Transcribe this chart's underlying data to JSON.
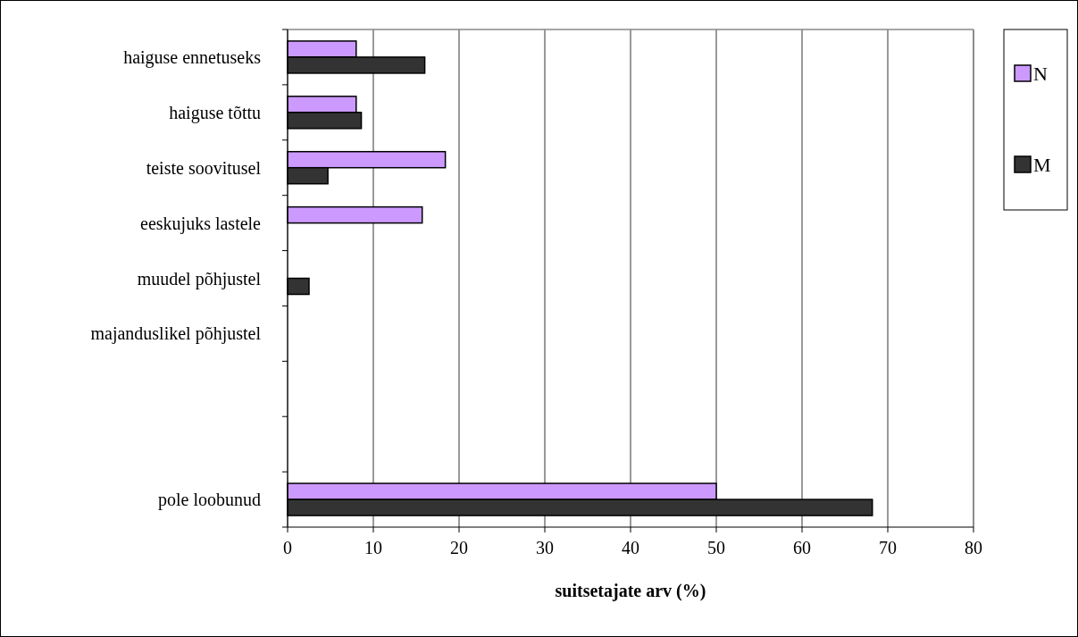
{
  "chart_data": {
    "type": "bar",
    "orientation": "horizontal",
    "xlabel": "suitsetajate arv (%)",
    "categories": [
      "haiguse ennetuseks",
      "haiguse tõttu",
      "teiste soovitusel",
      "eeskujuks lastele",
      "muudel põhjustel",
      "majanduslikel põhjustel",
      null,
      null,
      "pole loobunud"
    ],
    "series": [
      {
        "name": "N",
        "color": "#cc99ff",
        "values": [
          8.0,
          8.0,
          18.4,
          15.7,
          null,
          null,
          null,
          null,
          50.0
        ]
      },
      {
        "name": "M",
        "color": "#333333",
        "values": [
          16.0,
          8.6,
          4.7,
          null,
          2.5,
          null,
          null,
          null,
          68.2
        ]
      }
    ],
    "xlim": [
      0,
      80
    ],
    "xticks": [
      0,
      10,
      20,
      30,
      40,
      50,
      60,
      70,
      80
    ],
    "grid": "x",
    "legend": "right"
  }
}
